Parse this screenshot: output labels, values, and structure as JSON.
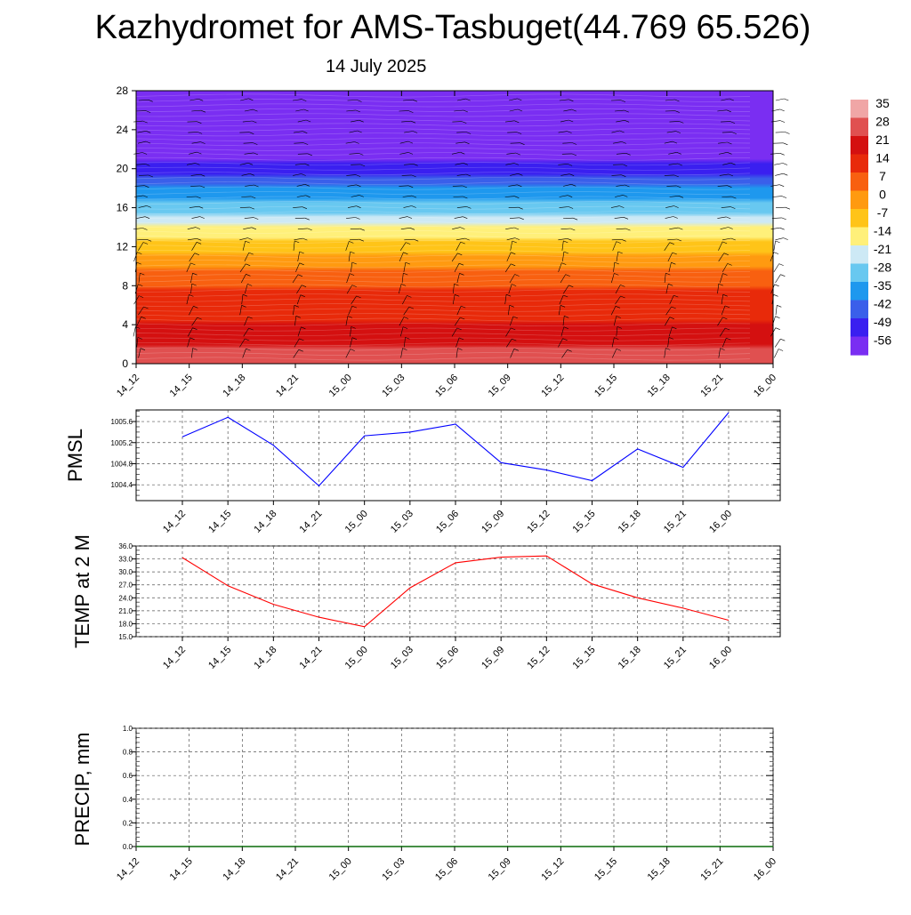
{
  "title": "Kazhydromet for AMS-Tasbuget(44.769 65.526)",
  "subtitle": "14 July 2025",
  "chart_data": [
    {
      "type": "heatmap",
      "name": "upper-air-temperature",
      "x_categories": [
        "14_12",
        "14_15",
        "14_18",
        "14_21",
        "15_00",
        "15_03",
        "15_06",
        "15_09",
        "15_12",
        "15_15",
        "15_18",
        "15_21",
        "16_00"
      ],
      "yticks": [
        0,
        4,
        8,
        12,
        16,
        20,
        24,
        28
      ],
      "ylim": [
        0,
        28
      ],
      "colorbar": {
        "labels": [
          "35",
          "28",
          "21",
          "14",
          "7",
          "0",
          "-7",
          "-14",
          "-21",
          "-28",
          "-35",
          "-42",
          "-49",
          "-56"
        ],
        "colors": [
          "#f0a6a6",
          "#e05050",
          "#d41010",
          "#e82a0a",
          "#f86010",
          "#ff9a10",
          "#ffc418",
          "#fff07a",
          "#cde9f5",
          "#68c8f0",
          "#1e98ee",
          "#3a5fea",
          "#3a1ff0",
          "#7a2ef2"
        ]
      },
      "temperature_by_height": [
        {
          "height": 0,
          "value": 33
        },
        {
          "height": 4,
          "value": 22
        },
        {
          "height": 8,
          "value": 13
        },
        {
          "height": 12,
          "value": -3
        },
        {
          "height": 14,
          "value": -14
        },
        {
          "height": 16,
          "value": -25
        },
        {
          "height": 20,
          "value": -45
        },
        {
          "height": 22,
          "value": -56
        },
        {
          "height": 28,
          "value": -52
        }
      ]
    },
    {
      "type": "line",
      "name": "pmsl",
      "ylabel": "PMSL",
      "x": [
        "14_12",
        "14_15",
        "14_18",
        "14_21",
        "15_00",
        "15_03",
        "15_06",
        "15_09",
        "15_12",
        "15_15",
        "15_18",
        "15_21",
        "16_00"
      ],
      "values": [
        1005.31,
        1005.68,
        1005.15,
        1004.38,
        1005.33,
        1005.4,
        1005.55,
        1004.82,
        1004.68,
        1004.48,
        1005.08,
        1004.73,
        1005.77
      ],
      "yticks": [
        "1004.4",
        "1004.8",
        "1005.2",
        "1005.6"
      ],
      "ylim": [
        1004.1,
        1005.82
      ],
      "color": "#0000ff"
    },
    {
      "type": "line",
      "name": "temp-2m",
      "ylabel": "TEMP at 2 M",
      "x": [
        "14_12",
        "14_15",
        "14_18",
        "14_21",
        "15_00",
        "15_03",
        "15_06",
        "15_09",
        "15_12",
        "15_15",
        "15_18",
        "15_21",
        "16_00"
      ],
      "values": [
        33.3,
        26.8,
        22.5,
        19.5,
        17.3,
        26.3,
        32.1,
        33.4,
        33.7,
        27.2,
        24.0,
        21.6,
        18.8
      ],
      "yticks": [
        "15.0",
        "18.0",
        "21.0",
        "24.0",
        "27.0",
        "30.0",
        "33.0",
        "36.0"
      ],
      "ylim": [
        15,
        36
      ],
      "color": "#ff0000"
    },
    {
      "type": "line",
      "name": "precip",
      "ylabel": "PRECIP, mm",
      "x": [
        "14_12",
        "14_15",
        "14_18",
        "14_21",
        "15_00",
        "15_03",
        "15_06",
        "15_09",
        "15_12",
        "15_15",
        "15_18",
        "15_21",
        "16_00"
      ],
      "values": [
        0,
        0,
        0,
        0,
        0,
        0,
        0,
        0,
        0,
        0,
        0,
        0,
        0
      ],
      "yticks": [
        "0.0",
        "0.2",
        "0.4",
        "0.6",
        "0.8",
        "1.0"
      ],
      "ylim": [
        0,
        1
      ],
      "color": "#0a6b0a"
    }
  ]
}
